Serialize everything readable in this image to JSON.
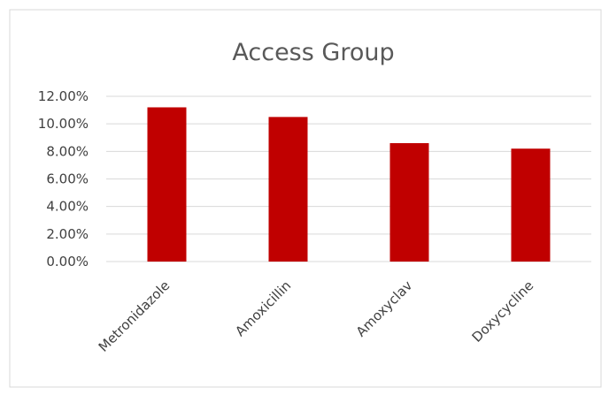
{
  "chart_data": {
    "type": "bar",
    "title": "Access Group",
    "categories": [
      "Metronidazole",
      "Amoxicillin",
      "Amoxyclav",
      "Doxycycline"
    ],
    "values": [
      11.2,
      10.5,
      8.6,
      8.2
    ],
    "value_format": "percent_2dp",
    "ylim": [
      0,
      12
    ],
    "yticks": [
      0,
      2,
      4,
      6,
      8,
      10,
      12
    ],
    "ytick_labels": [
      "0.00%",
      "2.00%",
      "4.00%",
      "6.00%",
      "8.00%",
      "10.00%",
      "12.00%"
    ],
    "grid": true,
    "legend": "none",
    "bar_color": "#C00000",
    "grid_color": "#D9D9D9",
    "border_color": "#D9D9D9"
  }
}
